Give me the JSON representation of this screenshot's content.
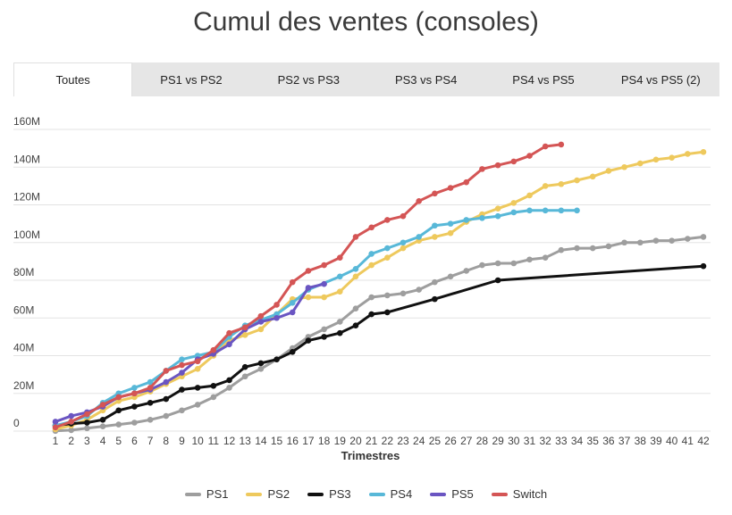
{
  "title": "Cumul des ventes (consoles)",
  "tabs": [
    {
      "label": "Toutes",
      "active": true
    },
    {
      "label": "PS1 vs PS2",
      "active": false
    },
    {
      "label": "PS2 vs PS3",
      "active": false
    },
    {
      "label": "PS3 vs PS4",
      "active": false
    },
    {
      "label": "PS4 vs PS5",
      "active": false
    },
    {
      "label": "PS4 vs PS5 (2)",
      "active": false
    }
  ],
  "chart_data": {
    "type": "line",
    "xlabel": "Trimestres",
    "ylabel": "",
    "x": [
      1,
      2,
      3,
      4,
      5,
      6,
      7,
      8,
      9,
      10,
      11,
      12,
      13,
      14,
      15,
      16,
      17,
      18,
      19,
      20,
      21,
      22,
      23,
      24,
      25,
      26,
      27,
      28,
      29,
      30,
      31,
      32,
      33,
      34,
      35,
      36,
      37,
      38,
      39,
      40,
      41,
      42
    ],
    "ylim": [
      0,
      160
    ],
    "yticks": [
      "0",
      "20M",
      "40M",
      "60M",
      "80M",
      "100M",
      "120M",
      "140M",
      "160M"
    ],
    "grid": true,
    "legend_position": "bottom",
    "series": [
      {
        "name": "PS1",
        "color": "#9e9e9e",
        "markers": true,
        "values": [
          0.1,
          0.5,
          1.5,
          2.5,
          3.5,
          4.5,
          6,
          8,
          11,
          14,
          18,
          23,
          29,
          33,
          38,
          44,
          50,
          54,
          58,
          65,
          71,
          72,
          73,
          75,
          79,
          82,
          85,
          88,
          89,
          89,
          91,
          92,
          96,
          97,
          97,
          98,
          100,
          100,
          101,
          101,
          102,
          103
        ]
      },
      {
        "name": "PS2",
        "color": "#eec95d",
        "markers": true,
        "values": [
          1,
          3,
          6,
          11,
          16,
          18,
          21,
          25,
          29,
          33,
          40,
          48,
          51,
          54,
          62,
          70,
          71,
          71,
          74,
          82,
          88,
          92,
          97,
          101,
          103,
          105,
          111,
          115,
          118,
          121,
          125,
          130,
          131,
          133,
          135,
          138,
          140,
          142,
          144,
          145,
          147,
          148
        ]
      },
      {
        "name": "PS3",
        "color": "#111111",
        "markers": true,
        "values": [
          3,
          4,
          4.5,
          6,
          11,
          13,
          15,
          17,
          22,
          23,
          24,
          27,
          34,
          36,
          38,
          42,
          48,
          50,
          52,
          56,
          62,
          63,
          null,
          null,
          70,
          null,
          null,
          null,
          80,
          null,
          null,
          null,
          null,
          null,
          null,
          null,
          null,
          null,
          null,
          null,
          null,
          87.5
        ]
      },
      {
        "name": "PS4",
        "color": "#58b8d8",
        "markers": true,
        "values": [
          3,
          5,
          8,
          15,
          20,
          23,
          26,
          32,
          38,
          40,
          42,
          50,
          56,
          59,
          62,
          68,
          75,
          null,
          82,
          86,
          94,
          97,
          100,
          103,
          109,
          110,
          112,
          113,
          114,
          116,
          117,
          117,
          117,
          117,
          null,
          null,
          null,
          null,
          null,
          null,
          null,
          null
        ]
      },
      {
        "name": "PS5",
        "color": "#6a55c2",
        "markers": true,
        "values": [
          5,
          8,
          10,
          13,
          18,
          20,
          22,
          26,
          31,
          38,
          41,
          46,
          54,
          58,
          60,
          63,
          76,
          78,
          null,
          null,
          null,
          null,
          null,
          null,
          null,
          null,
          null,
          null,
          null,
          null,
          null,
          null,
          null,
          null,
          null,
          null,
          null,
          null,
          null,
          null,
          null,
          null
        ]
      },
      {
        "name": "Switch",
        "color": "#d45555",
        "markers": true,
        "values": [
          2,
          5,
          9,
          14,
          18,
          20,
          23,
          32,
          35,
          37,
          43,
          52,
          55,
          61,
          67,
          79,
          85,
          88,
          92,
          103,
          108,
          112,
          114,
          122,
          126,
          129,
          132,
          139,
          141,
          143,
          146,
          151,
          152,
          null,
          null,
          null,
          null,
          null,
          null,
          null,
          null,
          null
        ]
      }
    ]
  }
}
